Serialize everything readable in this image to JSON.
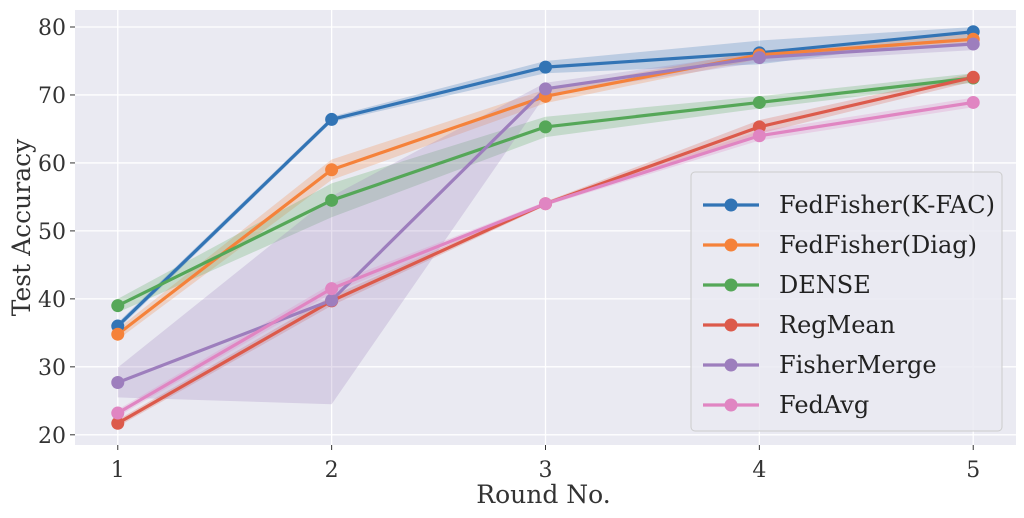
{
  "chart_data": {
    "type": "line",
    "xlabel": "Round No.",
    "ylabel": "Test Accuracy",
    "x": [
      1,
      2,
      3,
      4,
      5
    ],
    "x_ticks": [
      1,
      2,
      3,
      4,
      5
    ],
    "xlim": [
      0.8,
      5.2
    ],
    "y_ticks": [
      20,
      30,
      40,
      50,
      60,
      70,
      80
    ],
    "ylim": [
      18.5,
      82.5
    ],
    "grid": true,
    "background": "#eaeaf2",
    "legend_position": "lower-right",
    "series": [
      {
        "name": "FedFisher(K-FAC)",
        "color": "#3274b5",
        "values": [
          36.0,
          66.4,
          74.1,
          76.2,
          79.3
        ],
        "lower": [
          35.5,
          66.0,
          73.2,
          74.5,
          78.5
        ],
        "upper": [
          36.5,
          66.8,
          75.0,
          78.0,
          80.0
        ]
      },
      {
        "name": "FedFisher(Diag)",
        "color": "#f5823a",
        "values": [
          34.8,
          59.0,
          69.8,
          75.9,
          78.2
        ],
        "lower": [
          34.0,
          57.5,
          68.8,
          75.3,
          77.4
        ],
        "upper": [
          35.6,
          60.5,
          70.8,
          76.5,
          79.0
        ]
      },
      {
        "name": "DENSE",
        "color": "#55a758",
        "values": [
          39.0,
          54.5,
          65.3,
          68.9,
          72.5
        ],
        "lower": [
          38.0,
          52.0,
          63.8,
          68.0,
          71.8
        ],
        "upper": [
          40.0,
          57.0,
          66.8,
          69.8,
          73.2
        ]
      },
      {
        "name": "RegMean",
        "color": "#dc5a4b",
        "values": [
          21.7,
          39.7,
          54.0,
          65.3,
          72.6
        ],
        "lower": [
          21.2,
          39.0,
          53.7,
          64.3,
          72.0
        ],
        "upper": [
          22.2,
          40.4,
          54.3,
          66.3,
          73.2
        ]
      },
      {
        "name": "FisherMerge",
        "color": "#9d7ebd",
        "values": [
          27.7,
          39.8,
          70.9,
          75.5,
          77.5
        ],
        "lower": [
          25.5,
          24.5,
          70.0,
          74.8,
          76.6
        ],
        "upper": [
          29.9,
          55.1,
          71.8,
          76.2,
          78.4
        ]
      },
      {
        "name": "FedAvg",
        "color": "#e085c2",
        "values": [
          23.2,
          41.5,
          54.0,
          64.0,
          68.9
        ],
        "lower": [
          22.7,
          40.8,
          53.7,
          63.3,
          68.2
        ],
        "upper": [
          23.7,
          42.2,
          54.3,
          64.7,
          69.6
        ]
      }
    ]
  }
}
